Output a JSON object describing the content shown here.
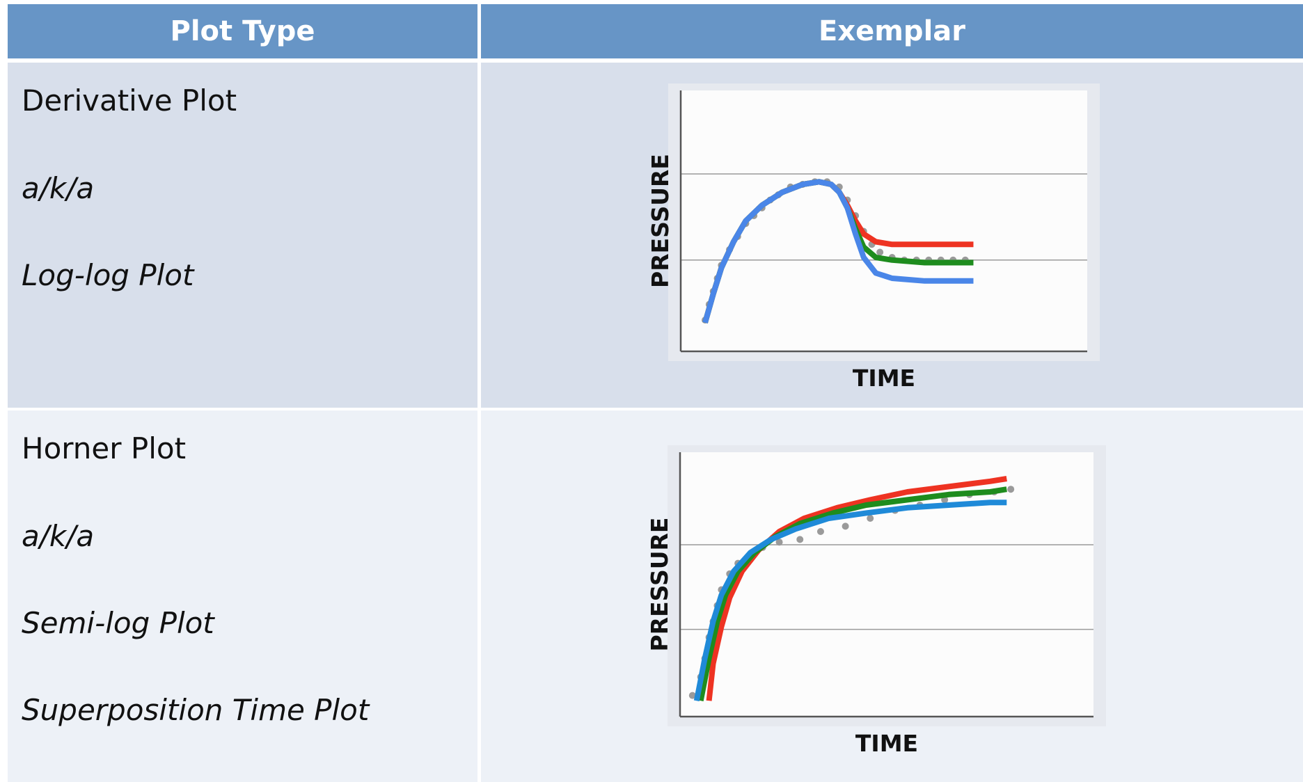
{
  "table": {
    "headers": {
      "plot_type": "Plot Type",
      "exemplar": "Exemplar"
    },
    "rows": [
      {
        "labels": [
          "Derivative  Plot",
          "a/k/a",
          "Log-log Plot"
        ],
        "italic": [
          false,
          true,
          true
        ]
      },
      {
        "labels": [
          "Horner Plot",
          "a/k/a",
          "Semi-log Plot",
          "Superposition Time Plot"
        ],
        "italic": [
          false,
          true,
          true,
          true
        ]
      }
    ]
  },
  "chart_data": [
    {
      "type": "line",
      "xlabel": "TIME",
      "ylabel": "PRESSURE",
      "xlim": [
        0,
        1
      ],
      "ylim": [
        0,
        1
      ],
      "grid": {
        "horizontal": [
          0.35,
          0.68
        ]
      },
      "scatter_color": "#9a9a9a",
      "scatter": [
        [
          0.06,
          0.12
        ],
        [
          0.07,
          0.18
        ],
        [
          0.08,
          0.23
        ],
        [
          0.09,
          0.28
        ],
        [
          0.1,
          0.33
        ],
        [
          0.12,
          0.39
        ],
        [
          0.14,
          0.44
        ],
        [
          0.16,
          0.49
        ],
        [
          0.18,
          0.52
        ],
        [
          0.2,
          0.55
        ],
        [
          0.22,
          0.58
        ],
        [
          0.24,
          0.6
        ],
        [
          0.27,
          0.63
        ],
        [
          0.3,
          0.64
        ],
        [
          0.33,
          0.65
        ],
        [
          0.36,
          0.65
        ],
        [
          0.39,
          0.63
        ],
        [
          0.41,
          0.58
        ],
        [
          0.43,
          0.52
        ],
        [
          0.45,
          0.46
        ],
        [
          0.47,
          0.41
        ],
        [
          0.49,
          0.38
        ],
        [
          0.52,
          0.36
        ],
        [
          0.55,
          0.35
        ],
        [
          0.58,
          0.35
        ],
        [
          0.61,
          0.35
        ],
        [
          0.64,
          0.35
        ],
        [
          0.67,
          0.35
        ],
        [
          0.7,
          0.35
        ]
      ],
      "series": [
        {
          "color": "#ee3322",
          "points": [
            [
              0.06,
              0.11
            ],
            [
              0.08,
              0.22
            ],
            [
              0.1,
              0.32
            ],
            [
              0.13,
              0.42
            ],
            [
              0.16,
              0.5
            ],
            [
              0.2,
              0.56
            ],
            [
              0.25,
              0.61
            ],
            [
              0.3,
              0.64
            ],
            [
              0.34,
              0.65
            ],
            [
              0.37,
              0.64
            ],
            [
              0.39,
              0.61
            ],
            [
              0.41,
              0.56
            ],
            [
              0.43,
              0.5
            ],
            [
              0.45,
              0.45
            ],
            [
              0.48,
              0.42
            ],
            [
              0.52,
              0.41
            ],
            [
              0.6,
              0.41
            ],
            [
              0.72,
              0.41
            ]
          ]
        },
        {
          "color": "#1e8c1e",
          "points": [
            [
              0.06,
              0.11
            ],
            [
              0.08,
              0.22
            ],
            [
              0.1,
              0.32
            ],
            [
              0.13,
              0.42
            ],
            [
              0.16,
              0.5
            ],
            [
              0.2,
              0.56
            ],
            [
              0.25,
              0.61
            ],
            [
              0.3,
              0.64
            ],
            [
              0.34,
              0.65
            ],
            [
              0.37,
              0.64
            ],
            [
              0.39,
              0.61
            ],
            [
              0.41,
              0.55
            ],
            [
              0.43,
              0.47
            ],
            [
              0.45,
              0.4
            ],
            [
              0.48,
              0.36
            ],
            [
              0.52,
              0.35
            ],
            [
              0.6,
              0.34
            ],
            [
              0.72,
              0.34
            ]
          ]
        },
        {
          "color": "#4a86e8",
          "points": [
            [
              0.06,
              0.11
            ],
            [
              0.08,
              0.22
            ],
            [
              0.1,
              0.32
            ],
            [
              0.13,
              0.42
            ],
            [
              0.16,
              0.5
            ],
            [
              0.2,
              0.56
            ],
            [
              0.25,
              0.61
            ],
            [
              0.3,
              0.64
            ],
            [
              0.34,
              0.65
            ],
            [
              0.37,
              0.64
            ],
            [
              0.39,
              0.61
            ],
            [
              0.41,
              0.55
            ],
            [
              0.43,
              0.45
            ],
            [
              0.45,
              0.36
            ],
            [
              0.48,
              0.3
            ],
            [
              0.52,
              0.28
            ],
            [
              0.6,
              0.27
            ],
            [
              0.72,
              0.27
            ]
          ]
        }
      ]
    },
    {
      "type": "line",
      "xlabel": "TIME",
      "ylabel": "PRESSURE",
      "xlim": [
        0,
        1
      ],
      "ylim": [
        0,
        1
      ],
      "grid": {
        "horizontal": [
          0.33,
          0.65
        ]
      },
      "scatter_color": "#9a9a9a",
      "scatter": [
        [
          0.03,
          0.08
        ],
        [
          0.05,
          0.15
        ],
        [
          0.06,
          0.22
        ],
        [
          0.07,
          0.3
        ],
        [
          0.08,
          0.36
        ],
        [
          0.09,
          0.42
        ],
        [
          0.1,
          0.48
        ],
        [
          0.12,
          0.54
        ],
        [
          0.14,
          0.58
        ],
        [
          0.17,
          0.61
        ],
        [
          0.2,
          0.64
        ],
        [
          0.24,
          0.66
        ],
        [
          0.29,
          0.67
        ],
        [
          0.34,
          0.7
        ],
        [
          0.4,
          0.72
        ],
        [
          0.46,
          0.75
        ],
        [
          0.52,
          0.78
        ],
        [
          0.58,
          0.8
        ],
        [
          0.64,
          0.82
        ],
        [
          0.7,
          0.84
        ],
        [
          0.76,
          0.85
        ],
        [
          0.8,
          0.86
        ]
      ],
      "series": [
        {
          "color": "#ee3322",
          "points": [
            [
              0.07,
              0.06
            ],
            [
              0.08,
              0.2
            ],
            [
              0.1,
              0.34
            ],
            [
              0.12,
              0.45
            ],
            [
              0.15,
              0.55
            ],
            [
              0.19,
              0.63
            ],
            [
              0.24,
              0.7
            ],
            [
              0.3,
              0.75
            ],
            [
              0.38,
              0.79
            ],
            [
              0.46,
              0.82
            ],
            [
              0.55,
              0.85
            ],
            [
              0.65,
              0.87
            ],
            [
              0.75,
              0.89
            ],
            [
              0.79,
              0.9
            ]
          ]
        },
        {
          "color": "#1e8c1e",
          "points": [
            [
              0.05,
              0.06
            ],
            [
              0.07,
              0.22
            ],
            [
              0.09,
              0.36
            ],
            [
              0.11,
              0.46
            ],
            [
              0.14,
              0.55
            ],
            [
              0.18,
              0.62
            ],
            [
              0.23,
              0.68
            ],
            [
              0.29,
              0.73
            ],
            [
              0.37,
              0.77
            ],
            [
              0.45,
              0.8
            ],
            [
              0.55,
              0.82
            ],
            [
              0.65,
              0.84
            ],
            [
              0.75,
              0.85
            ],
            [
              0.79,
              0.86
            ]
          ]
        },
        {
          "color": "#1f8ad8",
          "points": [
            [
              0.04,
              0.06
            ],
            [
              0.06,
              0.22
            ],
            [
              0.08,
              0.36
            ],
            [
              0.1,
              0.46
            ],
            [
              0.13,
              0.55
            ],
            [
              0.17,
              0.62
            ],
            [
              0.22,
              0.67
            ],
            [
              0.28,
              0.71
            ],
            [
              0.36,
              0.75
            ],
            [
              0.45,
              0.77
            ],
            [
              0.55,
              0.79
            ],
            [
              0.65,
              0.8
            ],
            [
              0.75,
              0.81
            ],
            [
              0.79,
              0.81
            ]
          ]
        }
      ]
    }
  ]
}
